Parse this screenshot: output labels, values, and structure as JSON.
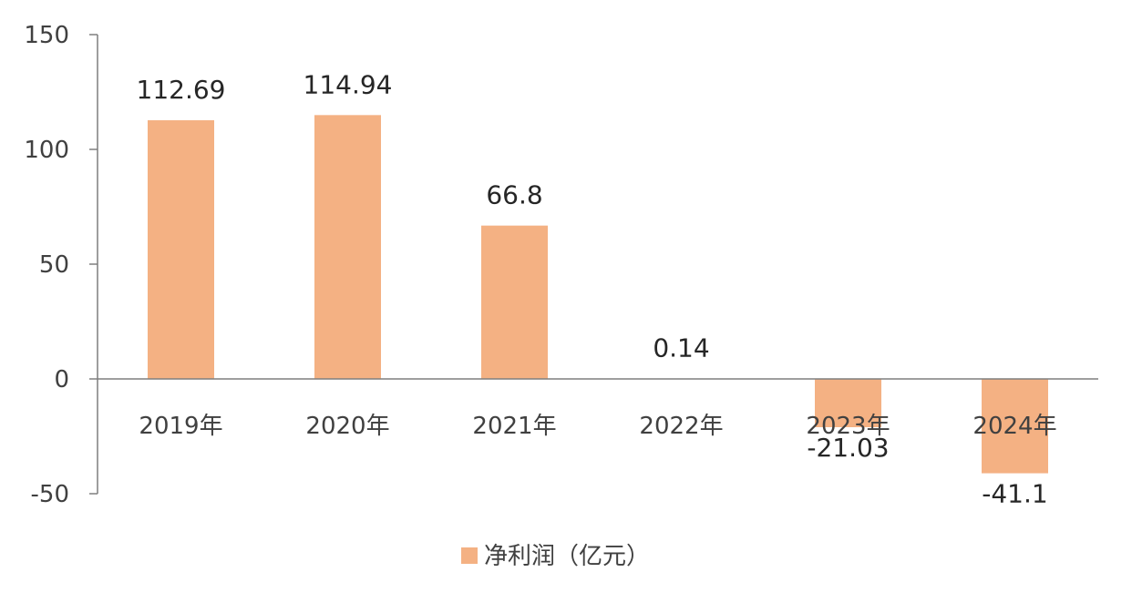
{
  "chart_data": {
    "type": "bar",
    "categories": [
      "2019年",
      "2020年",
      "2021年",
      "2022年",
      "2023年",
      "2024年"
    ],
    "series": [
      {
        "name": "净利润（亿元）",
        "values": [
          112.69,
          114.94,
          66.8,
          0.14,
          -21.03,
          -41.1
        ],
        "color": "#F4B183"
      }
    ],
    "data_labels": [
      "112.69",
      "114.94",
      "66.8",
      "0.14",
      "-21.03",
      "-41.1"
    ],
    "y_ticks": [
      150,
      100,
      50,
      0,
      -50
    ],
    "ylim": [
      -50,
      150
    ],
    "grid": false,
    "legend_position": "bottom",
    "title": "",
    "xlabel": "",
    "ylabel": ""
  }
}
